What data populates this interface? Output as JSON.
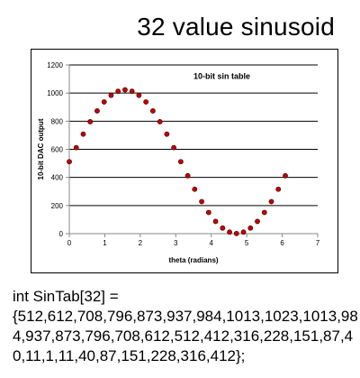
{
  "slide": {
    "title": "32 value sinusoid"
  },
  "code": {
    "lines": [
      "int SinTab[32] =",
      "{512,612,708,796,873,937,984,1013,1023,1013,98",
      "4,937,873,796,708,612,512,412,316,228,151,87,4",
      "0,11,1,11,40,87,151,228,316,412};"
    ]
  },
  "chart_data": {
    "type": "scatter",
    "title": "10-bit sin table",
    "xlabel": "theta (radians)",
    "ylabel": "10-bit DAC output",
    "xlim": [
      0,
      7
    ],
    "ylim": [
      0,
      1200
    ],
    "xticks": [
      0,
      1,
      2,
      3,
      4,
      5,
      6,
      7
    ],
    "yticks": [
      0,
      200,
      400,
      600,
      800,
      1000,
      1200
    ],
    "grid": "horizontal",
    "marker_color": "#c00000",
    "x": [
      0,
      0.196,
      0.393,
      0.589,
      0.785,
      0.982,
      1.178,
      1.374,
      1.571,
      1.767,
      1.963,
      2.16,
      2.356,
      2.553,
      2.749,
      2.945,
      3.142,
      3.338,
      3.534,
      3.731,
      3.927,
      4.123,
      4.32,
      4.516,
      4.712,
      4.909,
      5.105,
      5.301,
      5.498,
      5.694,
      5.89,
      6.087
    ],
    "values": [
      512,
      612,
      708,
      796,
      873,
      937,
      984,
      1013,
      1023,
      1013,
      984,
      937,
      873,
      796,
      708,
      612,
      512,
      412,
      316,
      228,
      151,
      87,
      40,
      11,
      1,
      11,
      40,
      87,
      151,
      228,
      316,
      412
    ]
  }
}
